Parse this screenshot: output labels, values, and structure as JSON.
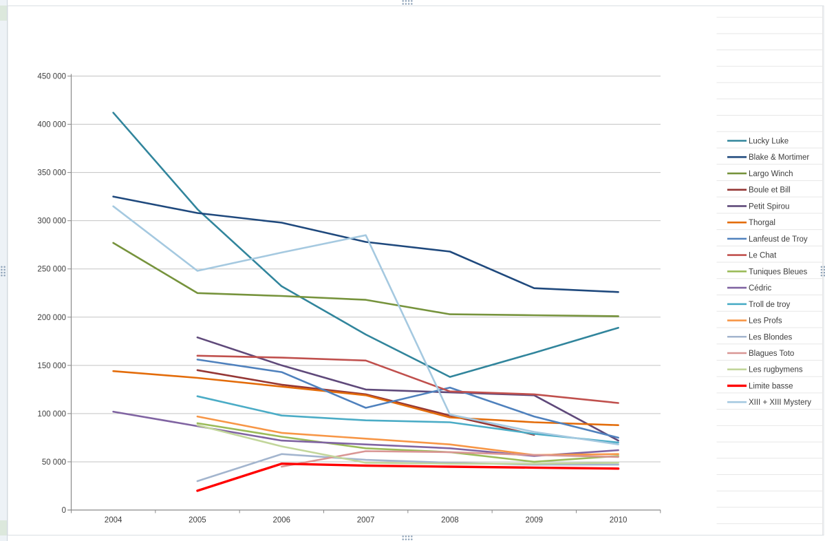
{
  "worksheet": {
    "selection_handles": "chart-object-selected"
  },
  "chart_data": {
    "type": "line",
    "title": "",
    "xlabel": "",
    "ylabel": "",
    "grid": true,
    "legend_position": "right",
    "x_categories": [
      "2004",
      "2005",
      "2006",
      "2007",
      "2008",
      "2009",
      "2010"
    ],
    "y_axis": {
      "min": 0,
      "max": 450000,
      "step": 50000,
      "tick_labels": [
        "0",
        "50 000",
        "100 000",
        "150 000",
        "200 000",
        "250 000",
        "300 000",
        "350 000",
        "400 000",
        "450 000"
      ]
    },
    "series": [
      {
        "name": "Lucky Luke",
        "color": "#31859C",
        "values": [
          412000,
          312000,
          232000,
          182000,
          138000,
          163000,
          189000
        ]
      },
      {
        "name": "Blake & Mortimer",
        "color": "#1F497D",
        "values": [
          325000,
          308000,
          298000,
          278000,
          268000,
          230000,
          226000
        ]
      },
      {
        "name": "Largo Winch",
        "color": "#76933C",
        "values": [
          277000,
          225000,
          222000,
          218000,
          203000,
          202000,
          201000
        ]
      },
      {
        "name": "Boule et Bill",
        "color": "#953735",
        "values": [
          null,
          145000,
          130000,
          120000,
          98000,
          78000,
          null
        ]
      },
      {
        "name": "Petit Spirou",
        "color": "#5F497A",
        "values": [
          null,
          179000,
          150000,
          125000,
          122000,
          119000,
          72000
        ]
      },
      {
        "name": "Thorgal",
        "color": "#E36C0A",
        "values": [
          144000,
          137000,
          128000,
          119000,
          96000,
          91000,
          88000
        ]
      },
      {
        "name": "Lanfeust de Troy",
        "color": "#4F81BD",
        "values": [
          null,
          156000,
          143000,
          106000,
          127000,
          97000,
          75000
        ]
      },
      {
        "name": "Le Chat",
        "color": "#C0504D",
        "values": [
          null,
          160000,
          158000,
          155000,
          123000,
          120000,
          111000
        ]
      },
      {
        "name": "Tuniques Bleues",
        "color": "#9BBB59",
        "values": [
          null,
          90000,
          76000,
          64000,
          60000,
          50000,
          56000
        ]
      },
      {
        "name": "Cédric",
        "color": "#8064A2",
        "values": [
          102000,
          87000,
          72000,
          68000,
          64000,
          56000,
          62000
        ]
      },
      {
        "name": "Troll de troy",
        "color": "#4BACC6",
        "values": [
          null,
          118000,
          98000,
          93000,
          91000,
          79000,
          70000
        ]
      },
      {
        "name": "Les Profs",
        "color": "#F79646",
        "values": [
          null,
          97000,
          80000,
          74000,
          68000,
          57000,
          58000
        ]
      },
      {
        "name": "Les Blondes",
        "color": "#A3B5CE",
        "values": [
          null,
          30000,
          58000,
          52000,
          49000,
          47000,
          47000
        ]
      },
      {
        "name": "Blagues Toto",
        "color": "#D99694",
        "values": [
          null,
          null,
          45000,
          61000,
          60000,
          57000,
          55000
        ]
      },
      {
        "name": "Les rugbymens",
        "color": "#C2D69B",
        "values": [
          null,
          88000,
          66000,
          49000,
          48000,
          48000,
          49000
        ]
      },
      {
        "name": "Limite basse",
        "color": "#FF0000",
        "thick": true,
        "values": [
          null,
          20000,
          48000,
          46000,
          45000,
          44000,
          43000
        ]
      },
      {
        "name": "XIII + XIII Mystery",
        "color": "#A5C9E0",
        "values": [
          315000,
          248000,
          267000,
          285000,
          99000,
          81000,
          68000
        ]
      }
    ]
  }
}
